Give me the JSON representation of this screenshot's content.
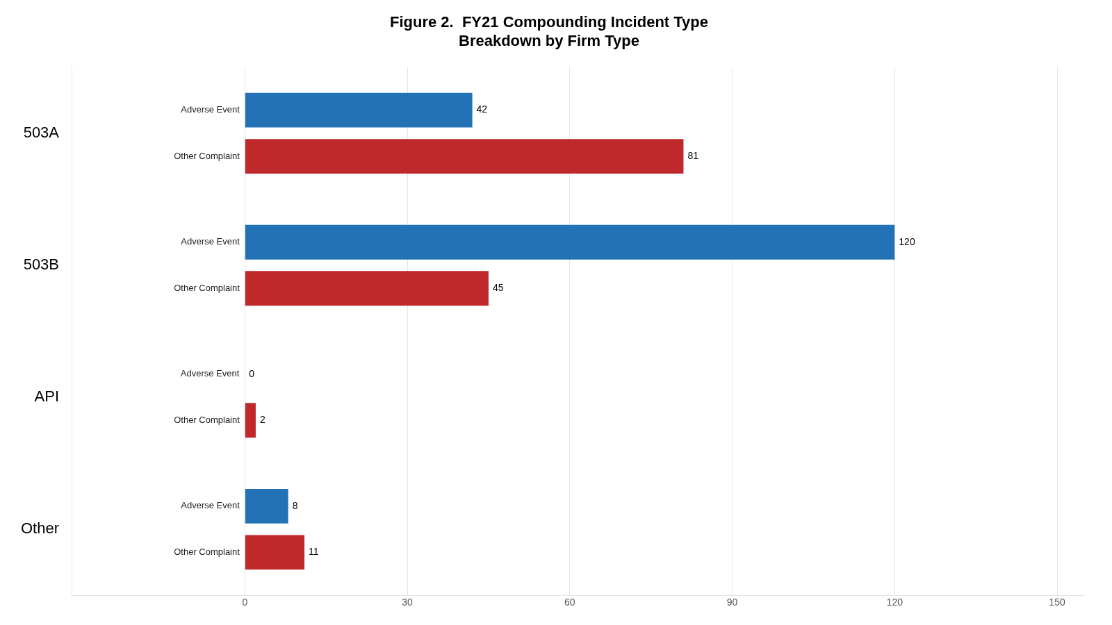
{
  "chart_data": {
    "type": "bar",
    "orientation": "horizontal",
    "title": "Figure 2.  FY21 Compounding Incident Type",
    "subtitle": "Breakdown by Firm Type",
    "categories": [
      "503A",
      "503B",
      "API",
      "Other"
    ],
    "series": [
      {
        "name": "Adverse Event",
        "color": "#2272b5",
        "values": [
          42,
          120,
          0,
          8
        ]
      },
      {
        "name": "Other Complaint",
        "color": "#c0292b",
        "values": [
          81,
          45,
          2,
          11
        ]
      }
    ],
    "xlim": [
      -32,
      155
    ],
    "xticks": [
      0,
      30,
      60,
      90,
      120,
      150
    ],
    "grid": true,
    "data_labels": true
  }
}
